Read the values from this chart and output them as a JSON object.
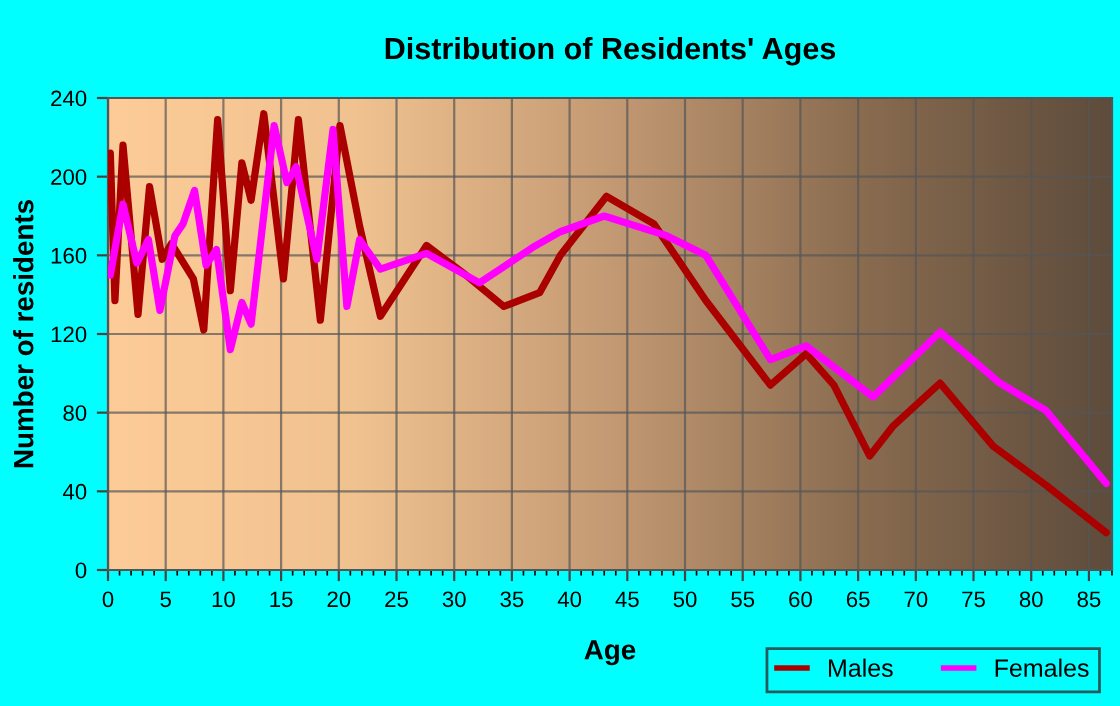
{
  "chart_data": {
    "type": "line",
    "title": "Distribution of Residents' Ages",
    "xlabel": "Age",
    "ylabel": "Number of residents",
    "xlim": [
      0,
      87
    ],
    "ylim": [
      0,
      240
    ],
    "xticks": [
      0,
      5,
      10,
      15,
      20,
      25,
      30,
      35,
      40,
      45,
      50,
      55,
      60,
      65,
      70,
      75,
      80,
      85
    ],
    "yticks": [
      0,
      40,
      80,
      120,
      160,
      200,
      240
    ],
    "grid": true,
    "legend": "bottom right",
    "series": [
      {
        "name": "Males",
        "color": "#aa0000",
        "x": [
          0.2,
          0.6,
          1.3,
          2.6,
          3.6,
          4.7,
          5.5,
          7.4,
          8.3,
          9.5,
          10.6,
          11.6,
          12.4,
          13.5,
          15.2,
          16.5,
          18.4,
          20.1,
          21.8,
          23.6,
          27.6,
          31,
          34.3,
          37.4,
          39.2,
          43.2,
          47.3,
          51.8,
          57.4,
          60.5,
          62.9,
          66,
          68,
          72.1,
          76.7,
          81.3,
          86.5
        ],
        "values": [
          212,
          137,
          216,
          130,
          195,
          158,
          166,
          148,
          122,
          229,
          142,
          207,
          188,
          232,
          148,
          229,
          127,
          226,
          175,
          129,
          165,
          150,
          134,
          141,
          160,
          190,
          176,
          137,
          94,
          110,
          94,
          58,
          73,
          95,
          63,
          43,
          19
        ]
      },
      {
        "name": "Females",
        "color": "#ff00ff",
        "x": [
          0.2,
          1.3,
          2.5,
          3.5,
          4.5,
          5.8,
          6.5,
          7.5,
          8.5,
          9.4,
          10.6,
          11.6,
          12.4,
          14.4,
          15.5,
          16.3,
          18.1,
          19.5,
          20.7,
          21.8,
          23.6,
          27.6,
          32.2,
          36.8,
          39.2,
          43,
          48.4,
          51.8,
          57.4,
          60.5,
          66.3,
          72.1,
          77.3,
          81.3,
          86.5
        ],
        "values": [
          150,
          186,
          156,
          168,
          132,
          170,
          176,
          193,
          155,
          163,
          112,
          136,
          125,
          226,
          197,
          205,
          158,
          224,
          134,
          168,
          153,
          161,
          146,
          164,
          172,
          180,
          170,
          160,
          107,
          114,
          88,
          121,
          95,
          81,
          44
        ]
      }
    ]
  }
}
